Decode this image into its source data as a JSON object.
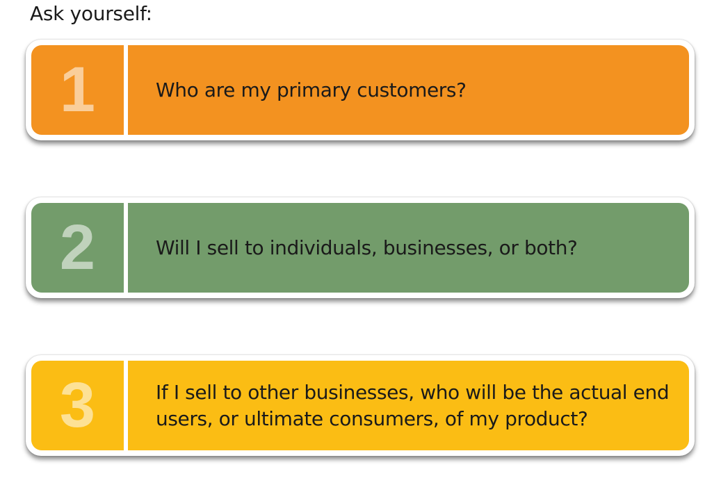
{
  "heading": "Ask yourself:",
  "items": [
    {
      "number": "1",
      "text": "Who are my primary customers?",
      "color": "#f39220"
    },
    {
      "number": "2",
      "text": "Will I sell to individuals, businesses, or both?",
      "color": "#739c6b"
    },
    {
      "number": "3",
      "text": "If I sell to other businesses, who will be the actual end users, or ultimate consumers, of my product?",
      "color": "#fbbd14"
    }
  ]
}
